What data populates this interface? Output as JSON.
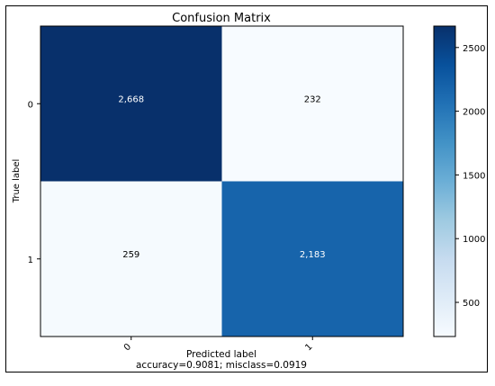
{
  "chart_data": {
    "type": "heatmap",
    "title": "Confusion Matrix",
    "xlabel": "Predicted label",
    "ylabel": "True label",
    "subtitle": "accuracy=0.9081; misclass=0.0919",
    "x_categories": [
      "0",
      "1"
    ],
    "y_categories": [
      "0",
      "1"
    ],
    "matrix": [
      [
        2668,
        232
      ],
      [
        259,
        2183
      ]
    ],
    "cell_labels": [
      [
        "2,668",
        "232"
      ],
      [
        "259",
        "2,183"
      ]
    ],
    "colorbar": {
      "colormap": "Blues",
      "min": 232,
      "max": 2668,
      "ticks": [
        "500",
        "1000",
        "1500",
        "2000",
        "2500"
      ],
      "tick_values": [
        500,
        1000,
        1500,
        2000,
        2500
      ]
    }
  }
}
